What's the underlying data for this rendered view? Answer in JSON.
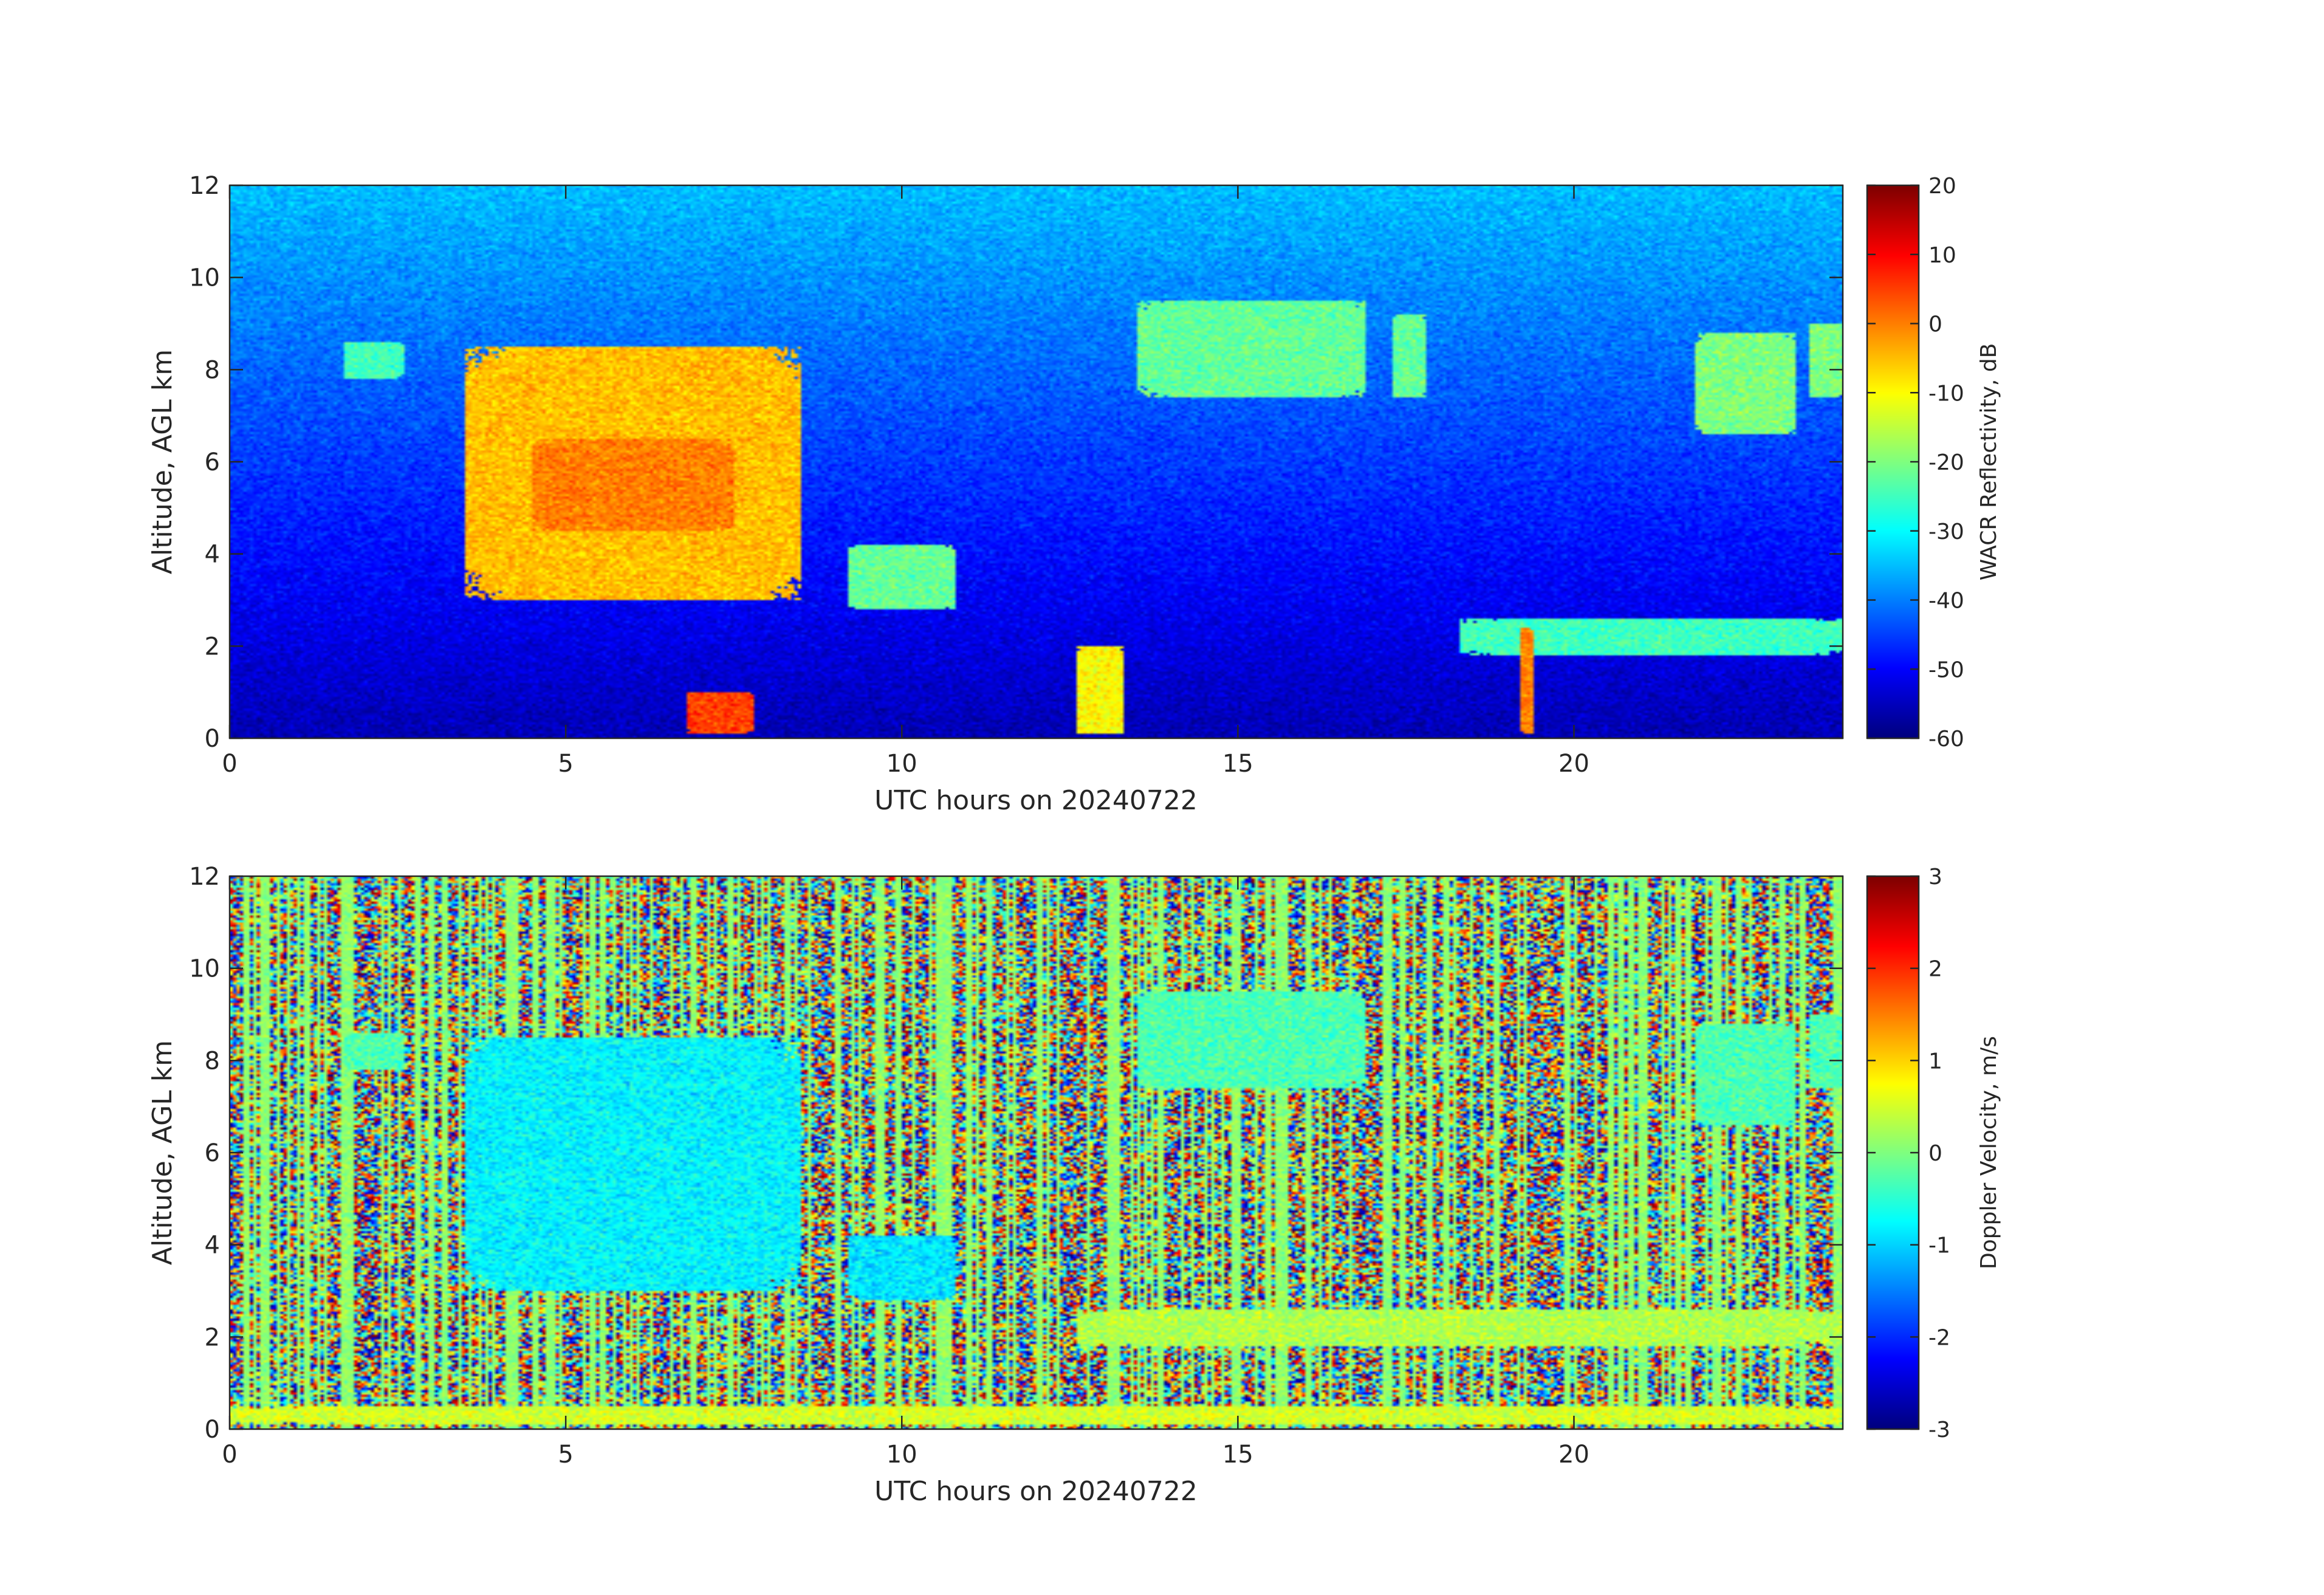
{
  "chart_data": [
    {
      "type": "heatmap",
      "xlabel": "UTC hours on 20240722",
      "ylabel": "Altitude, AGL km",
      "colorbar_label": "WACR Reflectivity, dB",
      "xlim": [
        0,
        24
      ],
      "ylim": [
        0,
        12
      ],
      "clim": [
        -60,
        20
      ],
      "colormap": "jet",
      "x_ticks": [
        0,
        5,
        10,
        15,
        20
      ],
      "y_ticks": [
        0,
        2,
        4,
        6,
        8,
        10,
        12
      ],
      "colorbar_ticks": [
        -60,
        -50,
        -40,
        -30,
        -20,
        -10,
        0,
        10,
        20
      ],
      "background_description": "noise-floor reflectivity increasing with altitude: ~-55 dB near 0 km, ~-35 dB near 12 km",
      "features": [
        {
          "x_range": [
            3.5,
            8.5
          ],
          "y_range": [
            3.0,
            8.5
          ],
          "value": -5
        },
        {
          "x_range": [
            4.5,
            7.5
          ],
          "y_range": [
            4.5,
            6.5
          ],
          "value": 0
        },
        {
          "x_range": [
            9.2,
            10.8
          ],
          "y_range": [
            2.8,
            4.2
          ],
          "value": -22
        },
        {
          "x_range": [
            1.7,
            2.6
          ],
          "y_range": [
            7.8,
            8.6
          ],
          "value": -25
        },
        {
          "x_range": [
            13.5,
            16.9
          ],
          "y_range": [
            7.4,
            9.5
          ],
          "value": -22
        },
        {
          "x_range": [
            17.3,
            17.8
          ],
          "y_range": [
            7.4,
            9.2
          ],
          "value": -22
        },
        {
          "x_range": [
            21.8,
            23.3
          ],
          "y_range": [
            6.6,
            8.8
          ],
          "value": -20
        },
        {
          "x_range": [
            23.5,
            24.0
          ],
          "y_range": [
            7.4,
            9.0
          ],
          "value": -20
        },
        {
          "x_range": [
            18.3,
            24.0
          ],
          "y_range": [
            1.8,
            2.6
          ],
          "value": -25
        },
        {
          "x_range": [
            12.6,
            13.3
          ],
          "y_range": [
            0.1,
            2.0
          ],
          "value": -10
        },
        {
          "x_range": [
            19.2,
            19.4
          ],
          "y_range": [
            0.1,
            2.4
          ],
          "value": 0
        },
        {
          "x_range": [
            6.8,
            7.8
          ],
          "y_range": [
            0.1,
            1.0
          ],
          "value": 5
        }
      ]
    },
    {
      "type": "heatmap",
      "xlabel": "UTC hours on 20240722",
      "ylabel": "Altitude, AGL km",
      "colorbar_label": "Doppler Velocity, m/s",
      "xlim": [
        0,
        24
      ],
      "ylim": [
        0,
        12
      ],
      "clim": [
        -3,
        3
      ],
      "colormap": "jet",
      "x_ticks": [
        0,
        5,
        10,
        15,
        20
      ],
      "y_ticks": [
        0,
        2,
        4,
        6,
        8,
        10,
        12
      ],
      "colorbar_ticks": [
        -3,
        -2,
        -1,
        0,
        1,
        2,
        3
      ],
      "background_description": "random noise spanning the full velocity range outside cloud",
      "features": [
        {
          "x_range": [
            3.5,
            8.5
          ],
          "y_range": [
            3.0,
            8.5
          ],
          "value": -0.8
        },
        {
          "x_range": [
            9.2,
            10.8
          ],
          "y_range": [
            2.8,
            4.2
          ],
          "value": -0.9
        },
        {
          "x_range": [
            1.7,
            2.6
          ],
          "y_range": [
            7.8,
            8.6
          ],
          "value": -0.3
        },
        {
          "x_range": [
            13.5,
            16.9
          ],
          "y_range": [
            7.4,
            9.5
          ],
          "value": -0.3
        },
        {
          "x_range": [
            21.8,
            23.3
          ],
          "y_range": [
            6.6,
            8.8
          ],
          "value": -0.3
        },
        {
          "x_range": [
            23.5,
            24.0
          ],
          "y_range": [
            7.4,
            9.0
          ],
          "value": -0.3
        },
        {
          "x_range": [
            12.6,
            24.0
          ],
          "y_range": [
            1.8,
            2.6
          ],
          "value": 0.3
        },
        {
          "x_range": [
            0,
            24
          ],
          "y_range": [
            0.1,
            0.5
          ],
          "value": 0.5
        }
      ]
    }
  ]
}
